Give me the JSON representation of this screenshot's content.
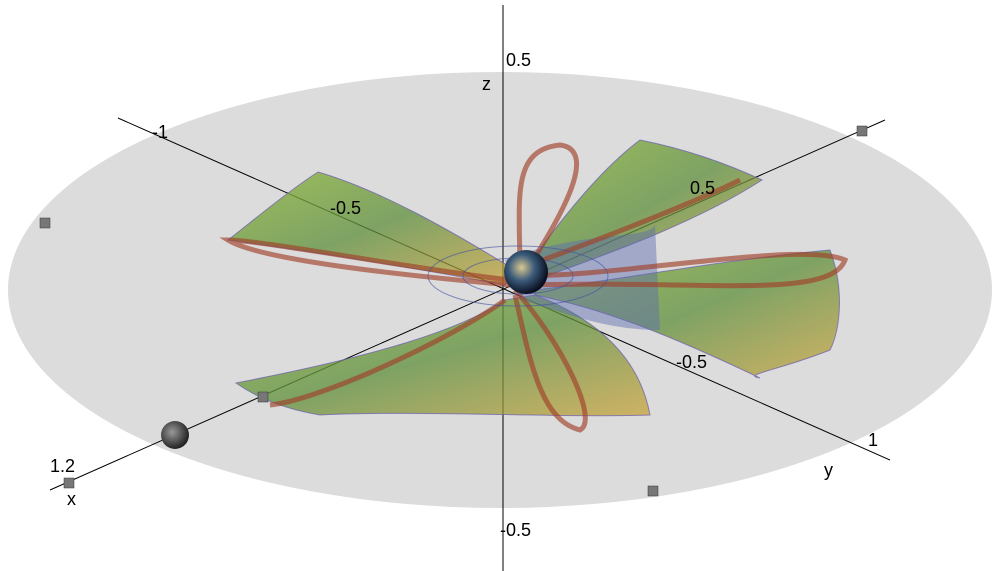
{
  "axes": {
    "z": {
      "label": "z",
      "ticks": [
        "0.5",
        "-0.5"
      ]
    },
    "y": {
      "label": "y",
      "ticks": [
        "-1",
        "-0.5",
        "-0.5",
        "1"
      ]
    },
    "x": {
      "label": "x",
      "ticks": [
        "1.2",
        "0.5"
      ]
    }
  }
}
